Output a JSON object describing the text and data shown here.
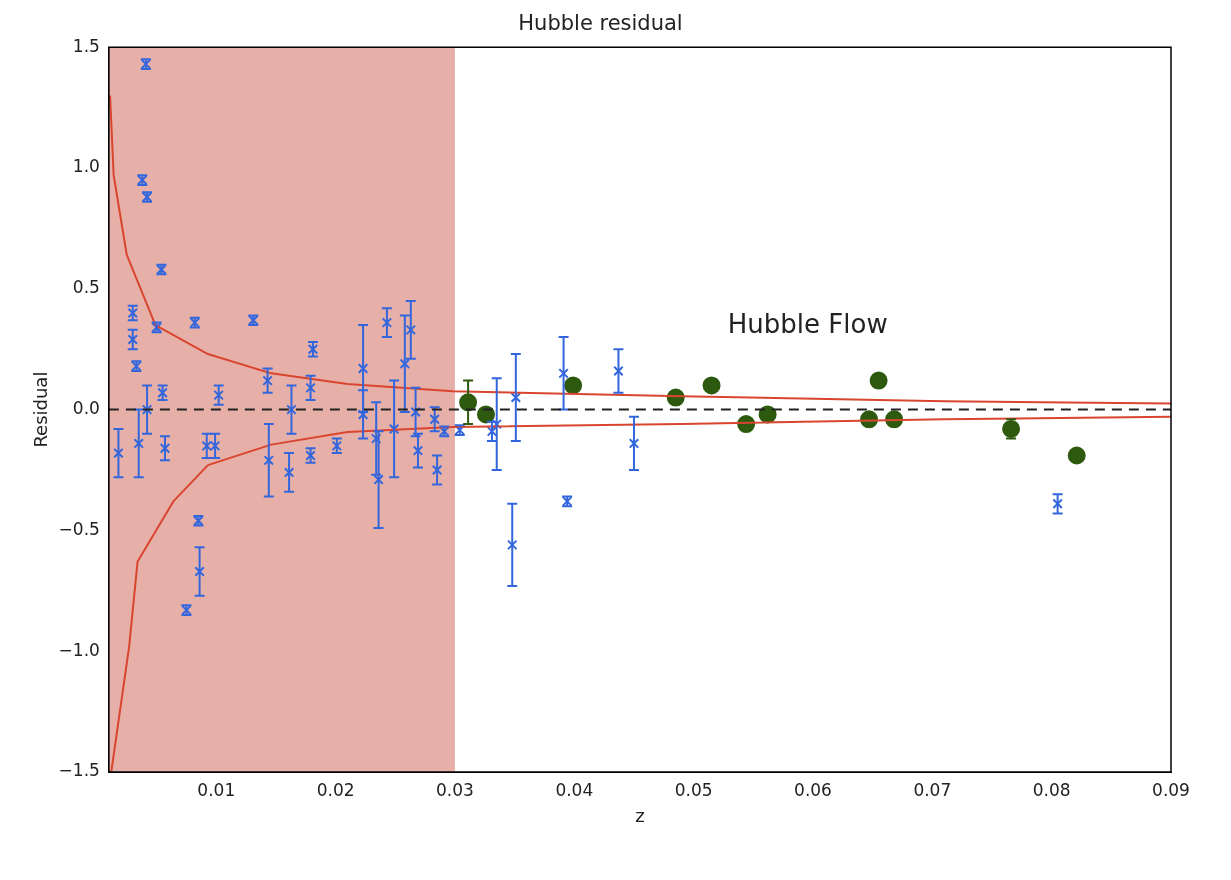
{
  "chart_data": {
    "type": "scatter",
    "title": "Hubble residual",
    "xlabel": "z",
    "ylabel": "Residual",
    "xlim": [
      0.001,
      0.09
    ],
    "xticks": [
      0.01,
      0.02,
      0.03,
      0.04,
      0.05,
      0.06,
      0.07,
      0.08,
      0.09
    ],
    "ylim": [
      -1.5,
      1.5
    ],
    "yticks": [
      {
        "value": -1.5,
        "label": "−1.5"
      },
      {
        "value": -1,
        "label": "−1.0"
      },
      {
        "value": -0.5,
        "label": "−0.5"
      },
      {
        "value": 0,
        "label": "0.0"
      },
      {
        "value": 0.5,
        "label": "0.5"
      },
      {
        "value": 1,
        "label": "1.0"
      },
      {
        "value": 1.5,
        "label": "1.5"
      }
    ],
    "grid": false,
    "legend": false,
    "bands": [
      {
        "axis": "x",
        "from": 0.001,
        "to": 0.03,
        "color": "#e6b0a9"
      }
    ],
    "ref_lines": [
      {
        "axis": "y",
        "value": 0,
        "color": "#222222",
        "line_style": "dashed"
      }
    ],
    "annotations": [
      "Hubble Flow"
    ],
    "series": [
      {
        "type": "line",
        "color": "#d9452e",
        "marker": "none",
        "x": [
          0.0011,
          0.0014,
          0.0025,
          0.0049,
          0.0093,
          0.0146,
          0.021,
          0.0298,
          0.049,
          0.071,
          0.09
        ],
        "values": [
          1.3,
          0.97,
          0.64,
          0.35,
          0.23,
          0.15,
          0.106,
          0.076,
          0.055,
          0.035,
          0.025
        ]
      },
      {
        "type": "line",
        "color": "#d9452e",
        "marker": "none",
        "x": [
          0.0012,
          0.0027,
          0.0034,
          0.0064,
          0.0093,
          0.0146,
          0.021,
          0.0298,
          0.049,
          0.071,
          0.09
        ],
        "values": [
          -1.5,
          -0.98,
          -0.63,
          -0.38,
          -0.23,
          -0.145,
          -0.093,
          -0.072,
          -0.06,
          -0.04,
          -0.03
        ]
      },
      {
        "color": "#3366dd",
        "marker": "cross",
        "x": [
          0.0041,
          0.0038,
          0.0042,
          0.0054,
          0.003,
          0.003,
          0.0033,
          0.005,
          0.0082,
          0.0131,
          0.0055,
          0.0042,
          0.0018,
          0.0035,
          0.0057,
          0.0092,
          0.0099,
          0.0102,
          0.0085,
          0.0086,
          0.0075,
          0.0143,
          0.0144,
          0.0163,
          0.0161,
          0.0181,
          0.0179,
          0.0179,
          0.0201,
          0.0223,
          0.0223,
          0.0236,
          0.0234,
          0.0243,
          0.0249,
          0.0263,
          0.0258,
          0.0267,
          0.0269,
          0.0285,
          0.0283,
          0.0291,
          0.0304,
          0.0331,
          0.0335,
          0.0351,
          0.0348,
          0.0391,
          0.0394,
          0.0437,
          0.045,
          0.0805
        ],
        "values": [
          1.43,
          0.95,
          0.88,
          0.58,
          0.4,
          0.29,
          0.18,
          0.34,
          0.36,
          0.37,
          0.07,
          0.0,
          -0.18,
          -0.14,
          -0.16,
          -0.15,
          -0.15,
          0.06,
          -0.46,
          -0.67,
          -0.83,
          0.12,
          -0.21,
          0.0,
          -0.26,
          0.25,
          0.09,
          -0.19,
          -0.15,
          0.17,
          -0.02,
          -0.29,
          -0.12,
          0.36,
          -0.08,
          0.33,
          0.19,
          -0.01,
          -0.17,
          -0.25,
          -0.04,
          -0.09,
          -0.085,
          -0.09,
          -0.06,
          0.05,
          -0.56,
          0.15,
          -0.38,
          0.16,
          -0.14,
          -0.39
        ],
        "errors": [
          0.02,
          0.02,
          0.02,
          0.02,
          0.03,
          0.04,
          0.02,
          0.02,
          0.02,
          0.02,
          0.03,
          0.1,
          0.1,
          0.14,
          0.05,
          0.05,
          0.05,
          0.04,
          0.02,
          0.1,
          0.02,
          0.05,
          0.15,
          0.1,
          0.08,
          0.03,
          0.05,
          0.03,
          0.03,
          0.18,
          0.1,
          0.2,
          0.15,
          0.06,
          0.2,
          0.12,
          0.2,
          0.1,
          0.07,
          0.06,
          0.05,
          0.02,
          0.02,
          0.04,
          0.19,
          0.18,
          0.17,
          0.15,
          0.02,
          0.09,
          0.11,
          0.04
        ]
      },
      {
        "color": "#2d5a0e",
        "marker": "circle",
        "x": [
          0.0311,
          0.0326,
          0.0399,
          0.0485,
          0.0515,
          0.0544,
          0.0562,
          0.0647,
          0.0655,
          0.0668,
          0.0766,
          0.0821
        ],
        "values": [
          0.03,
          -0.02,
          0.1,
          0.05,
          0.1,
          -0.06,
          -0.02,
          -0.04,
          0.12,
          -0.04,
          -0.08,
          -0.19
        ],
        "errors": [
          0.09,
          null,
          null,
          null,
          null,
          null,
          null,
          null,
          null,
          null,
          0.04,
          null
        ]
      }
    ]
  }
}
